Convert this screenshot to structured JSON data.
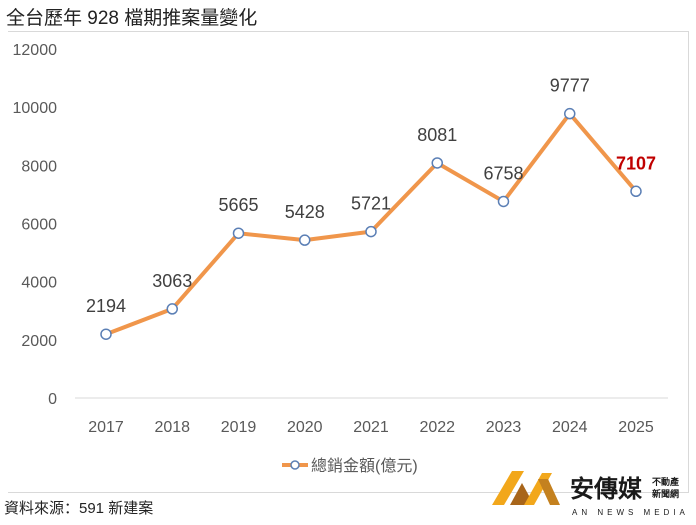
{
  "title": "全台歷年 928 檔期推案量變化",
  "source": "資料來源：591 新建案",
  "logo": {
    "name": "安傳媒",
    "sub": "不動產新聞網",
    "en": "AN NEWS MEDIA"
  },
  "chart_data": {
    "type": "line",
    "categories": [
      "2017",
      "2018",
      "2019",
      "2020",
      "2021",
      "2022",
      "2023",
      "2024",
      "2025"
    ],
    "series": [
      {
        "name": "總銷金額(億元)",
        "values": [
          2194,
          3063,
          5665,
          5428,
          5721,
          8081,
          6758,
          9777,
          7107
        ],
        "color": "#f0964b"
      }
    ],
    "ylim": [
      0,
      12000
    ],
    "yticks": [
      0,
      2000,
      4000,
      6000,
      8000,
      10000,
      12000
    ],
    "grid": false,
    "legend": "bottom",
    "highlight_color": "#c00000"
  }
}
